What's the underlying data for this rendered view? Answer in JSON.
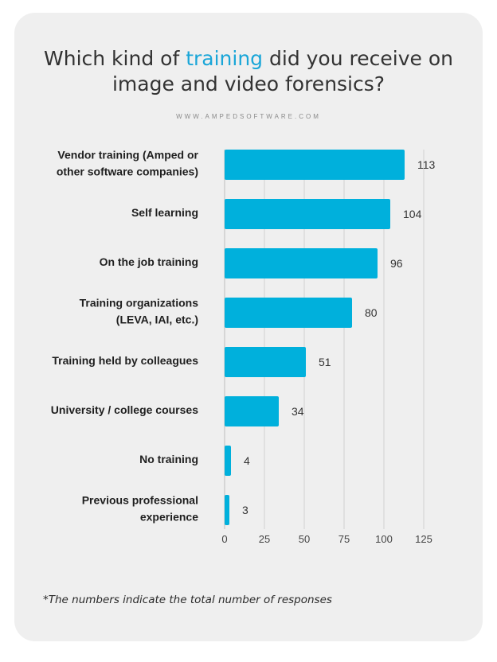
{
  "title": {
    "before": "Which kind of ",
    "highlight": "training",
    "after_line1": " did you receive on",
    "line2": "image and video forensics?"
  },
  "website": "WWW.AMPEDSOFTWARE.COM",
  "footnote": "*The numbers indicate the total number of responses",
  "colors": {
    "bar": "#00b0dc",
    "highlight": "#1aa6d8",
    "card_bg": "#efefef"
  },
  "chart_data": {
    "type": "bar",
    "orientation": "horizontal",
    "categories": [
      [
        "Vendor training (Amped or",
        "other software companies)"
      ],
      [
        "Self learning"
      ],
      [
        "On the job training"
      ],
      [
        "Training organizations",
        "(LEVA, IAI, etc.)"
      ],
      [
        "Training held by colleagues"
      ],
      [
        "University / college courses"
      ],
      [
        "No training"
      ],
      [
        "Previous professional",
        "experience"
      ]
    ],
    "values": [
      113,
      104,
      96,
      80,
      51,
      34,
      4,
      3
    ],
    "xlim": [
      0,
      125
    ],
    "xticks": [
      "0",
      "25",
      "50",
      "75",
      "100",
      "125"
    ],
    "grid": true,
    "xlabel": "",
    "ylabel": ""
  }
}
